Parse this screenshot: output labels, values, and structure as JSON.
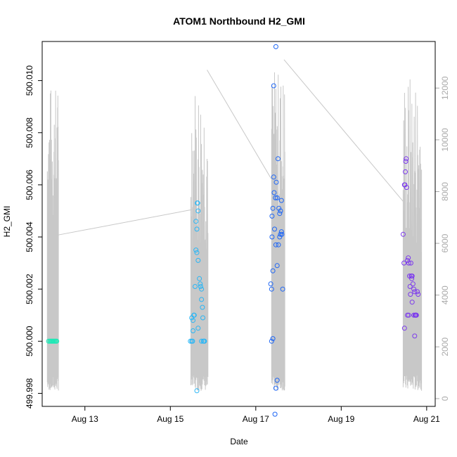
{
  "chart_data": {
    "type": "scatter",
    "title": "ATOM1 Northbound H2_GMI",
    "xlabel": "Date",
    "ylabel": "H2_GMI",
    "x_unit": "date (August, day fraction)",
    "xlim": [
      12.0,
      21.2
    ],
    "ylim": [
      499.9975,
      500.0115
    ],
    "y2lim": [
      -300,
      13800
    ],
    "x_ticks": [
      {
        "value": 13,
        "label": "Aug 13"
      },
      {
        "value": 15,
        "label": "Aug 15"
      },
      {
        "value": 17,
        "label": "Aug 17"
      },
      {
        "value": 19,
        "label": "Aug 19"
      },
      {
        "value": 21,
        "label": "Aug 21"
      }
    ],
    "y_ticks": [
      {
        "value": 499.998,
        "label": "499.998"
      },
      {
        "value": 500.0,
        "label": "500.000"
      },
      {
        "value": 500.002,
        "label": "500.002"
      },
      {
        "value": 500.004,
        "label": "500.004"
      },
      {
        "value": 500.006,
        "label": "500.006"
      },
      {
        "value": 500.008,
        "label": "500.008"
      },
      {
        "value": 500.01,
        "label": "500.010"
      }
    ],
    "y2_ticks": [
      {
        "value": 0,
        "label": "0"
      },
      {
        "value": 2000,
        "label": "2000"
      },
      {
        "value": 4000,
        "label": "4000"
      },
      {
        "value": 6000,
        "label": "6000"
      },
      {
        "value": 8000,
        "label": "8000"
      },
      {
        "value": 10000,
        "label": "10000"
      },
      {
        "value": 12000,
        "label": "12000"
      }
    ],
    "grid": false,
    "series": [
      {
        "color": "#1de9b6",
        "points": [
          [
            12.15,
            500.0
          ],
          [
            12.18,
            500.0
          ],
          [
            12.2,
            500.0
          ],
          [
            12.22,
            500.0
          ],
          [
            12.24,
            500.0
          ],
          [
            12.26,
            500.0
          ],
          [
            12.28,
            500.0
          ],
          [
            12.3,
            500.0
          ],
          [
            12.32,
            500.0
          ],
          [
            12.34,
            500.0
          ]
        ]
      },
      {
        "color": "#29b6f6",
        "points": [
          [
            15.47,
            500.0
          ],
          [
            15.5,
            500.0
          ],
          [
            15.52,
            500.0
          ],
          [
            15.53,
            500.0004
          ],
          [
            15.5,
            500.0009
          ],
          [
            15.53,
            500.0008
          ],
          [
            15.55,
            500.001
          ],
          [
            15.56,
            500.001
          ],
          [
            15.58,
            500.0021
          ],
          [
            15.6,
            500.0046
          ],
          [
            15.62,
            500.0043
          ],
          [
            15.63,
            500.0053
          ],
          [
            15.64,
            500.0053
          ],
          [
            15.65,
            500.005
          ],
          [
            15.6,
            500.0035
          ],
          [
            15.62,
            500.0034
          ],
          [
            15.65,
            500.0031
          ],
          [
            15.68,
            500.0024
          ],
          [
            15.7,
            500.0022
          ],
          [
            15.71,
            500.0021
          ],
          [
            15.73,
            500.002
          ],
          [
            15.73,
            500.0016
          ],
          [
            15.75,
            500.0013
          ],
          [
            15.76,
            500.0009
          ],
          [
            15.73,
            500.0
          ],
          [
            15.77,
            500.0
          ],
          [
            15.79,
            500.0
          ],
          [
            15.8,
            500.0
          ],
          [
            15.65,
            500.0005
          ],
          [
            15.62,
            499.9981
          ]
        ]
      },
      {
        "color": "#1e66f5",
        "points": [
          [
            17.35,
            500.0022
          ],
          [
            17.37,
            500.002
          ],
          [
            17.38,
            500.0048
          ],
          [
            17.4,
            500.0051
          ],
          [
            17.42,
            500.0063
          ],
          [
            17.43,
            500.0057
          ],
          [
            17.44,
            500.0043
          ],
          [
            17.46,
            500.0055
          ],
          [
            17.48,
            500.0061
          ],
          [
            17.5,
            500.0055
          ],
          [
            17.52,
            500.007
          ],
          [
            17.54,
            500.0051
          ],
          [
            17.56,
            500.0049
          ],
          [
            17.58,
            500.005
          ],
          [
            17.6,
            500.0054
          ],
          [
            17.38,
            500.004
          ],
          [
            17.4,
            500.0027
          ],
          [
            17.47,
            500.0037
          ],
          [
            17.5,
            500.0029
          ],
          [
            17.53,
            500.0037
          ],
          [
            17.56,
            500.004
          ],
          [
            17.58,
            500.0041
          ],
          [
            17.6,
            500.0042
          ],
          [
            17.61,
            500.0041
          ],
          [
            17.63,
            500.002
          ],
          [
            17.42,
            500.0098
          ],
          [
            17.47,
            500.0113
          ],
          [
            17.37,
            500.0
          ],
          [
            17.4,
            500.0001
          ],
          [
            17.47,
            499.9982
          ],
          [
            17.5,
            499.9985
          ],
          [
            17.45,
            499.9972
          ]
        ]
      },
      {
        "color": "#7c3aed",
        "points": [
          [
            20.45,
            500.0041
          ],
          [
            20.47,
            500.003
          ],
          [
            20.48,
            500.006
          ],
          [
            20.49,
            500.006
          ],
          [
            20.5,
            500.0065
          ],
          [
            20.51,
            500.0069
          ],
          [
            20.52,
            500.007
          ],
          [
            20.53,
            500.0059
          ],
          [
            20.55,
            500.0031
          ],
          [
            20.57,
            500.0032
          ],
          [
            20.58,
            500.003
          ],
          [
            20.6,
            500.0025
          ],
          [
            20.61,
            500.0021
          ],
          [
            20.63,
            500.003
          ],
          [
            20.64,
            500.0025
          ],
          [
            20.65,
            500.0024
          ],
          [
            20.66,
            500.0025
          ],
          [
            20.68,
            500.0022
          ],
          [
            20.7,
            500.002
          ],
          [
            20.72,
            500.0019
          ],
          [
            20.73,
            500.001
          ],
          [
            20.74,
            500.001
          ],
          [
            20.75,
            500.001
          ],
          [
            20.76,
            500.001
          ],
          [
            20.78,
            500.0019
          ],
          [
            20.8,
            500.0018
          ],
          [
            20.55,
            500.001
          ],
          [
            20.58,
            500.001
          ],
          [
            20.62,
            500.0018
          ],
          [
            20.66,
            500.0015
          ],
          [
            20.48,
            500.0005
          ],
          [
            20.72,
            500.0002
          ],
          [
            20.7,
            500.001
          ]
        ]
      }
    ],
    "overlay_line": {
      "color": "#c8c8c8",
      "axis": "right",
      "clusters": [
        {
          "start": 12.12,
          "end": 12.38,
          "peak": 12200
        },
        {
          "start": 15.48,
          "end": 15.88,
          "peak": 12400
        },
        {
          "start": 17.37,
          "end": 17.68,
          "peak": 12800
        },
        {
          "start": 20.45,
          "end": 20.88,
          "peak": 12600
        }
      ],
      "connectors": [
        [
          [
            12.3,
            6300
          ],
          [
            15.5,
            7300
          ]
        ],
        [
          [
            15.86,
            12700
          ],
          [
            17.36,
            8500
          ]
        ],
        [
          [
            17.66,
            13100
          ],
          [
            20.46,
            7600
          ]
        ]
      ]
    }
  }
}
